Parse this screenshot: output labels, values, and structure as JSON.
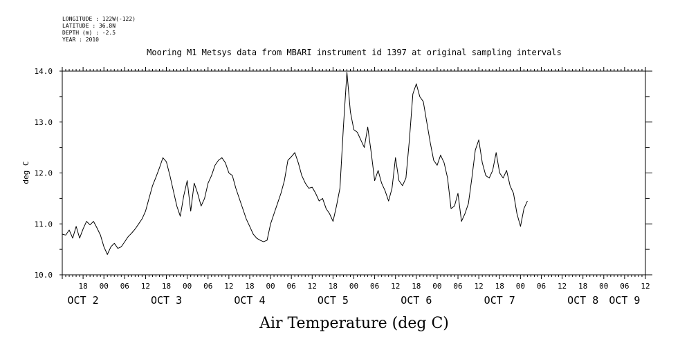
{
  "header": {
    "longitude": "LONGITUDE : 122W(-122)",
    "latitude": "LATITUDE : 36.8N",
    "depth": "DEPTH (m) : -2.5",
    "year": "YEAR : 2010"
  },
  "chart_data": {
    "type": "line",
    "title": "Mooring M1 Metsys data from MBARI instrument id 1397 at original sampling intervals",
    "ylabel": "deg C",
    "xlabel": "Air Temperature (deg C)",
    "ylim": [
      10.0,
      14.0
    ],
    "yticks": [
      "10.0",
      "11.0",
      "12.0",
      "13.0",
      "14.0"
    ],
    "x_unit": "hours since OCT 1 12:00",
    "xlim": [
      0,
      168
    ],
    "x_ticks": [
      {
        "x": 6,
        "label": "18"
      },
      {
        "x": 12,
        "label": "00"
      },
      {
        "x": 18,
        "label": "06"
      },
      {
        "x": 24,
        "label": "12"
      },
      {
        "x": 30,
        "label": "18"
      },
      {
        "x": 36,
        "label": "00"
      },
      {
        "x": 42,
        "label": "06"
      },
      {
        "x": 48,
        "label": "12"
      },
      {
        "x": 54,
        "label": "18"
      },
      {
        "x": 60,
        "label": "00"
      },
      {
        "x": 66,
        "label": "06"
      },
      {
        "x": 72,
        "label": "12"
      },
      {
        "x": 78,
        "label": "18"
      },
      {
        "x": 84,
        "label": "00"
      },
      {
        "x": 90,
        "label": "06"
      },
      {
        "x": 96,
        "label": "12"
      },
      {
        "x": 102,
        "label": "18"
      },
      {
        "x": 108,
        "label": "00"
      },
      {
        "x": 114,
        "label": "06"
      },
      {
        "x": 120,
        "label": "12"
      },
      {
        "x": 126,
        "label": "18"
      },
      {
        "x": 132,
        "label": "00"
      },
      {
        "x": 138,
        "label": "06"
      },
      {
        "x": 144,
        "label": "12"
      },
      {
        "x": 150,
        "label": "18"
      },
      {
        "x": 156,
        "label": "00"
      },
      {
        "x": 162,
        "label": "06"
      },
      {
        "x": 168,
        "label": "12"
      }
    ],
    "day_labels": [
      {
        "x": 6,
        "label": "OCT  2"
      },
      {
        "x": 30,
        "label": "OCT  3"
      },
      {
        "x": 54,
        "label": "OCT  4"
      },
      {
        "x": 78,
        "label": "OCT  5"
      },
      {
        "x": 102,
        "label": "OCT  6"
      },
      {
        "x": 126,
        "label": "OCT  7"
      },
      {
        "x": 150,
        "label": "OCT  8"
      },
      {
        "x": 162,
        "label": "OCT  9"
      }
    ],
    "series": [
      {
        "values": [
          [
            0,
            10.8
          ],
          [
            1,
            10.78
          ],
          [
            2,
            10.88
          ],
          [
            3,
            10.72
          ],
          [
            4,
            10.95
          ],
          [
            5,
            10.72
          ],
          [
            6,
            10.9
          ],
          [
            7,
            11.05
          ],
          [
            8,
            10.98
          ],
          [
            9,
            11.05
          ],
          [
            10,
            10.92
          ],
          [
            11,
            10.78
          ],
          [
            12,
            10.55
          ],
          [
            13,
            10.4
          ],
          [
            14,
            10.55
          ],
          [
            15,
            10.62
          ],
          [
            16,
            10.52
          ],
          [
            17,
            10.55
          ],
          [
            18,
            10.65
          ],
          [
            19,
            10.75
          ],
          [
            20,
            10.82
          ],
          [
            21,
            10.9
          ],
          [
            22,
            11.0
          ],
          [
            23,
            11.1
          ],
          [
            24,
            11.25
          ],
          [
            25,
            11.5
          ],
          [
            26,
            11.75
          ],
          [
            27,
            11.92
          ],
          [
            28,
            12.1
          ],
          [
            29,
            12.3
          ],
          [
            30,
            12.22
          ],
          [
            31,
            11.95
          ],
          [
            32,
            11.65
          ],
          [
            33,
            11.35
          ],
          [
            34,
            11.15
          ],
          [
            35,
            11.55
          ],
          [
            36,
            11.85
          ],
          [
            37,
            11.25
          ],
          [
            38,
            11.8
          ],
          [
            39,
            11.6
          ],
          [
            40,
            11.35
          ],
          [
            41,
            11.5
          ],
          [
            42,
            11.8
          ],
          [
            43,
            11.95
          ],
          [
            44,
            12.15
          ],
          [
            45,
            12.25
          ],
          [
            46,
            12.3
          ],
          [
            47,
            12.2
          ],
          [
            48,
            12.0
          ],
          [
            49,
            11.95
          ],
          [
            50,
            11.7
          ],
          [
            51,
            11.5
          ],
          [
            52,
            11.3
          ],
          [
            53,
            11.1
          ],
          [
            54,
            10.95
          ],
          [
            55,
            10.8
          ],
          [
            56,
            10.72
          ],
          [
            57,
            10.68
          ],
          [
            58,
            10.65
          ],
          [
            59,
            10.68
          ],
          [
            60,
            11.0
          ],
          [
            61,
            11.2
          ],
          [
            62,
            11.4
          ],
          [
            63,
            11.6
          ],
          [
            64,
            11.85
          ],
          [
            65,
            12.25
          ],
          [
            66,
            12.32
          ],
          [
            67,
            12.4
          ],
          [
            68,
            12.2
          ],
          [
            69,
            11.95
          ],
          [
            70,
            11.8
          ],
          [
            71,
            11.7
          ],
          [
            72,
            11.72
          ],
          [
            73,
            11.6
          ],
          [
            74,
            11.45
          ],
          [
            75,
            11.5
          ],
          [
            76,
            11.3
          ],
          [
            77,
            11.2
          ],
          [
            78,
            11.05
          ],
          [
            79,
            11.35
          ],
          [
            80,
            11.7
          ],
          [
            81,
            12.9
          ],
          [
            82,
            13.98
          ],
          [
            83,
            13.2
          ],
          [
            84,
            12.85
          ],
          [
            85,
            12.8
          ],
          [
            86,
            12.65
          ],
          [
            87,
            12.5
          ],
          [
            88,
            12.9
          ],
          [
            89,
            12.4
          ],
          [
            90,
            11.85
          ],
          [
            91,
            12.05
          ],
          [
            92,
            11.8
          ],
          [
            93,
            11.65
          ],
          [
            94,
            11.45
          ],
          [
            95,
            11.7
          ],
          [
            96,
            12.3
          ],
          [
            97,
            11.85
          ],
          [
            98,
            11.75
          ],
          [
            99,
            11.9
          ],
          [
            100,
            12.65
          ],
          [
            101,
            13.55
          ],
          [
            102,
            13.75
          ],
          [
            103,
            13.5
          ],
          [
            104,
            13.4
          ],
          [
            105,
            13.0
          ],
          [
            106,
            12.6
          ],
          [
            107,
            12.25
          ],
          [
            108,
            12.15
          ],
          [
            109,
            12.35
          ],
          [
            110,
            12.2
          ],
          [
            111,
            11.9
          ],
          [
            112,
            11.3
          ],
          [
            113,
            11.35
          ],
          [
            114,
            11.6
          ],
          [
            115,
            11.05
          ],
          [
            116,
            11.2
          ],
          [
            117,
            11.4
          ],
          [
            118,
            11.9
          ],
          [
            119,
            12.45
          ],
          [
            120,
            12.65
          ],
          [
            121,
            12.2
          ],
          [
            122,
            11.95
          ],
          [
            123,
            11.9
          ],
          [
            124,
            12.05
          ],
          [
            125,
            12.4
          ],
          [
            126,
            12.0
          ],
          [
            127,
            11.9
          ],
          [
            128,
            12.05
          ],
          [
            129,
            11.75
          ],
          [
            130,
            11.6
          ],
          [
            131,
            11.2
          ],
          [
            132,
            10.95
          ],
          [
            133,
            11.3
          ],
          [
            134,
            11.45
          ]
        ]
      }
    ],
    "grid": false
  }
}
